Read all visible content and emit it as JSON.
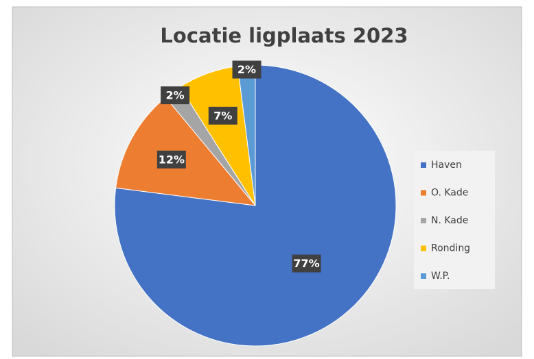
{
  "chart_data": {
    "type": "pie",
    "title": "Locatie ligplaats 2023",
    "categories": [
      "Haven",
      "O. Kade",
      "N. Kade",
      "Ronding",
      "W.P."
    ],
    "values": [
      77,
      12,
      2,
      7,
      2
    ],
    "value_labels": [
      "77%",
      "12%",
      "2%",
      "7%",
      "2%"
    ],
    "colors": [
      "#4472c4",
      "#ed7d31",
      "#a5a5a5",
      "#ffc000",
      "#5b9bd5"
    ],
    "legend": "right"
  }
}
